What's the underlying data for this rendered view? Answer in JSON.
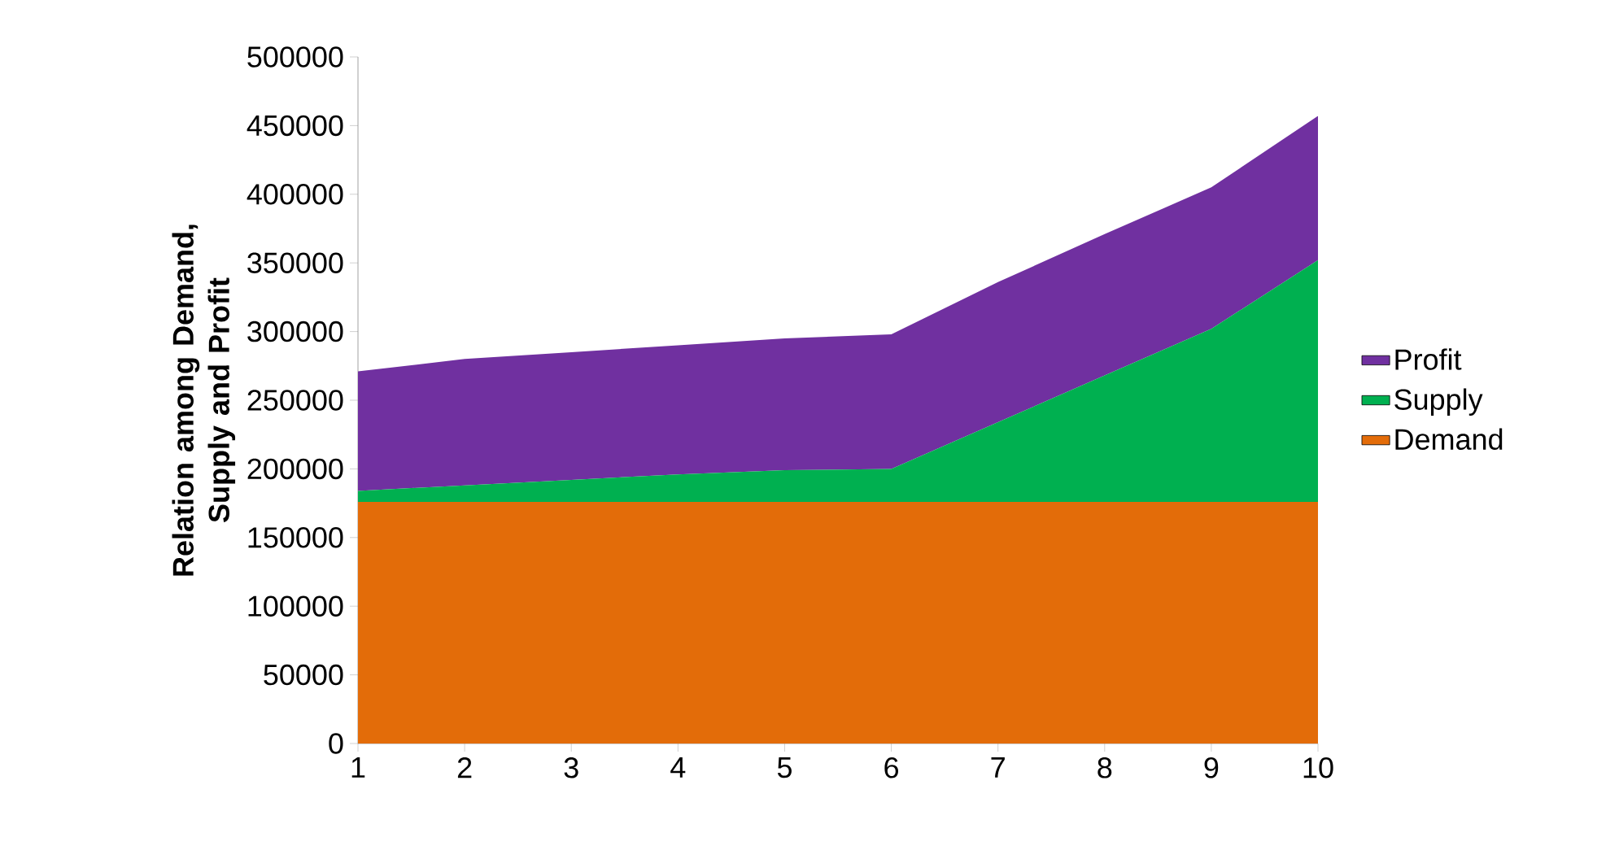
{
  "chart_data": {
    "type": "area",
    "ylabel": "Relation among Demand, Supply and Profit",
    "stacked": true,
    "legend": "right",
    "x": [
      1,
      2,
      3,
      4,
      5,
      6,
      7,
      8,
      9,
      10
    ],
    "series": [
      {
        "name": "Demand",
        "color": "#e36c09",
        "values": [
          176000,
          176000,
          176000,
          176000,
          176000,
          176000,
          176000,
          176000,
          176000,
          176000
        ]
      },
      {
        "name": "Supply",
        "color": "#00b050",
        "values": [
          8000,
          12000,
          16000,
          20000,
          23000,
          24000,
          58000,
          92000,
          126000,
          176000
        ]
      },
      {
        "name": "Profit",
        "color": "#7030a0",
        "values": [
          87000,
          92000,
          93000,
          94000,
          96000,
          98000,
          102000,
          103000,
          103000,
          105000
        ]
      }
    ],
    "xlim": [
      1,
      10
    ],
    "xticks": [
      1,
      2,
      3,
      4,
      5,
      6,
      7,
      8,
      9,
      10
    ],
    "ylim": [
      0,
      500000
    ],
    "yticks": [
      0,
      50000,
      100000,
      150000,
      200000,
      250000,
      300000,
      350000,
      400000,
      450000,
      500000
    ]
  }
}
